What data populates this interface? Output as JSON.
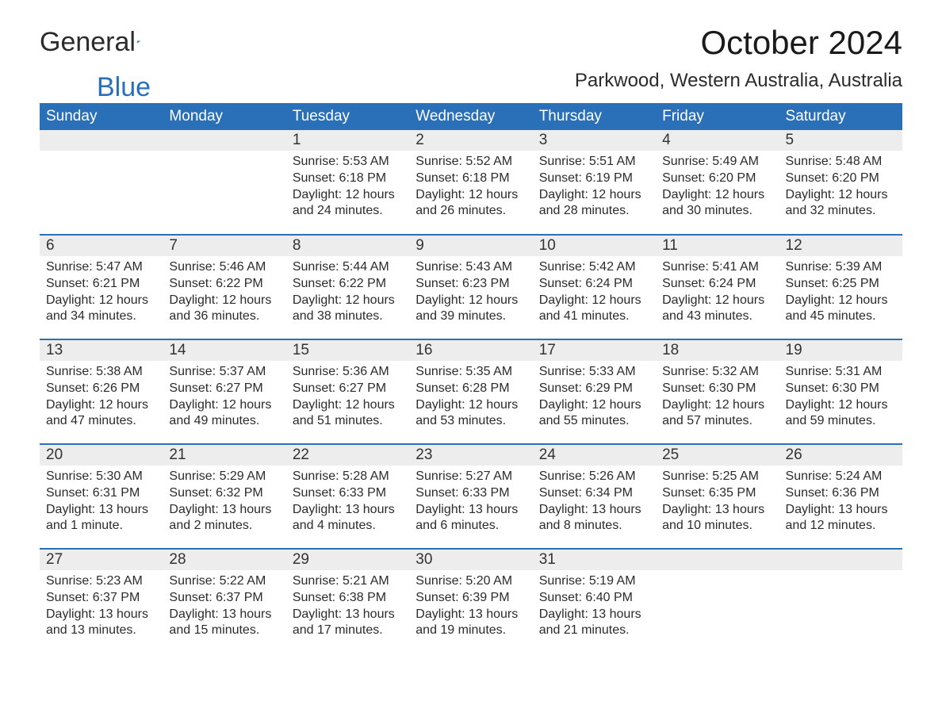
{
  "brand": {
    "text1": "General",
    "text2": "Blue",
    "logo_color": "#2a70b8"
  },
  "title": "October 2024",
  "location": "Parkwood, Western Australia, Australia",
  "colors": {
    "header_bg": "#2a70b8",
    "header_text": "#ffffff",
    "daynum_bg": "#ededed",
    "body_text": "#2b2b2b",
    "rule": "#2a70b8",
    "page_bg": "#ffffff"
  },
  "fonts": {
    "body_pt": 16,
    "header_pt": 19,
    "title_pt": 42,
    "location_pt": 24
  },
  "weekdays": [
    "Sunday",
    "Monday",
    "Tuesday",
    "Wednesday",
    "Thursday",
    "Friday",
    "Saturday"
  ],
  "weeks": [
    [
      null,
      null,
      {
        "n": "1",
        "sunrise": "5:53 AM",
        "sunset": "6:18 PM",
        "daylight": "12 hours and 24 minutes."
      },
      {
        "n": "2",
        "sunrise": "5:52 AM",
        "sunset": "6:18 PM",
        "daylight": "12 hours and 26 minutes."
      },
      {
        "n": "3",
        "sunrise": "5:51 AM",
        "sunset": "6:19 PM",
        "daylight": "12 hours and 28 minutes."
      },
      {
        "n": "4",
        "sunrise": "5:49 AM",
        "sunset": "6:20 PM",
        "daylight": "12 hours and 30 minutes."
      },
      {
        "n": "5",
        "sunrise": "5:48 AM",
        "sunset": "6:20 PM",
        "daylight": "12 hours and 32 minutes."
      }
    ],
    [
      {
        "n": "6",
        "sunrise": "5:47 AM",
        "sunset": "6:21 PM",
        "daylight": "12 hours and 34 minutes."
      },
      {
        "n": "7",
        "sunrise": "5:46 AM",
        "sunset": "6:22 PM",
        "daylight": "12 hours and 36 minutes."
      },
      {
        "n": "8",
        "sunrise": "5:44 AM",
        "sunset": "6:22 PM",
        "daylight": "12 hours and 38 minutes."
      },
      {
        "n": "9",
        "sunrise": "5:43 AM",
        "sunset": "6:23 PM",
        "daylight": "12 hours and 39 minutes."
      },
      {
        "n": "10",
        "sunrise": "5:42 AM",
        "sunset": "6:24 PM",
        "daylight": "12 hours and 41 minutes."
      },
      {
        "n": "11",
        "sunrise": "5:41 AM",
        "sunset": "6:24 PM",
        "daylight": "12 hours and 43 minutes."
      },
      {
        "n": "12",
        "sunrise": "5:39 AM",
        "sunset": "6:25 PM",
        "daylight": "12 hours and 45 minutes."
      }
    ],
    [
      {
        "n": "13",
        "sunrise": "5:38 AM",
        "sunset": "6:26 PM",
        "daylight": "12 hours and 47 minutes."
      },
      {
        "n": "14",
        "sunrise": "5:37 AM",
        "sunset": "6:27 PM",
        "daylight": "12 hours and 49 minutes."
      },
      {
        "n": "15",
        "sunrise": "5:36 AM",
        "sunset": "6:27 PM",
        "daylight": "12 hours and 51 minutes."
      },
      {
        "n": "16",
        "sunrise": "5:35 AM",
        "sunset": "6:28 PM",
        "daylight": "12 hours and 53 minutes."
      },
      {
        "n": "17",
        "sunrise": "5:33 AM",
        "sunset": "6:29 PM",
        "daylight": "12 hours and 55 minutes."
      },
      {
        "n": "18",
        "sunrise": "5:32 AM",
        "sunset": "6:30 PM",
        "daylight": "12 hours and 57 minutes."
      },
      {
        "n": "19",
        "sunrise": "5:31 AM",
        "sunset": "6:30 PM",
        "daylight": "12 hours and 59 minutes."
      }
    ],
    [
      {
        "n": "20",
        "sunrise": "5:30 AM",
        "sunset": "6:31 PM",
        "daylight": "13 hours and 1 minute."
      },
      {
        "n": "21",
        "sunrise": "5:29 AM",
        "sunset": "6:32 PM",
        "daylight": "13 hours and 2 minutes."
      },
      {
        "n": "22",
        "sunrise": "5:28 AM",
        "sunset": "6:33 PM",
        "daylight": "13 hours and 4 minutes."
      },
      {
        "n": "23",
        "sunrise": "5:27 AM",
        "sunset": "6:33 PM",
        "daylight": "13 hours and 6 minutes."
      },
      {
        "n": "24",
        "sunrise": "5:26 AM",
        "sunset": "6:34 PM",
        "daylight": "13 hours and 8 minutes."
      },
      {
        "n": "25",
        "sunrise": "5:25 AM",
        "sunset": "6:35 PM",
        "daylight": "13 hours and 10 minutes."
      },
      {
        "n": "26",
        "sunrise": "5:24 AM",
        "sunset": "6:36 PM",
        "daylight": "13 hours and 12 minutes."
      }
    ],
    [
      {
        "n": "27",
        "sunrise": "5:23 AM",
        "sunset": "6:37 PM",
        "daylight": "13 hours and 13 minutes."
      },
      {
        "n": "28",
        "sunrise": "5:22 AM",
        "sunset": "6:37 PM",
        "daylight": "13 hours and 15 minutes."
      },
      {
        "n": "29",
        "sunrise": "5:21 AM",
        "sunset": "6:38 PM",
        "daylight": "13 hours and 17 minutes."
      },
      {
        "n": "30",
        "sunrise": "5:20 AM",
        "sunset": "6:39 PM",
        "daylight": "13 hours and 19 minutes."
      },
      {
        "n": "31",
        "sunrise": "5:19 AM",
        "sunset": "6:40 PM",
        "daylight": "13 hours and 21 minutes."
      },
      null,
      null
    ]
  ],
  "labels": {
    "sunrise": "Sunrise: ",
    "sunset": "Sunset: ",
    "daylight": "Daylight: "
  }
}
